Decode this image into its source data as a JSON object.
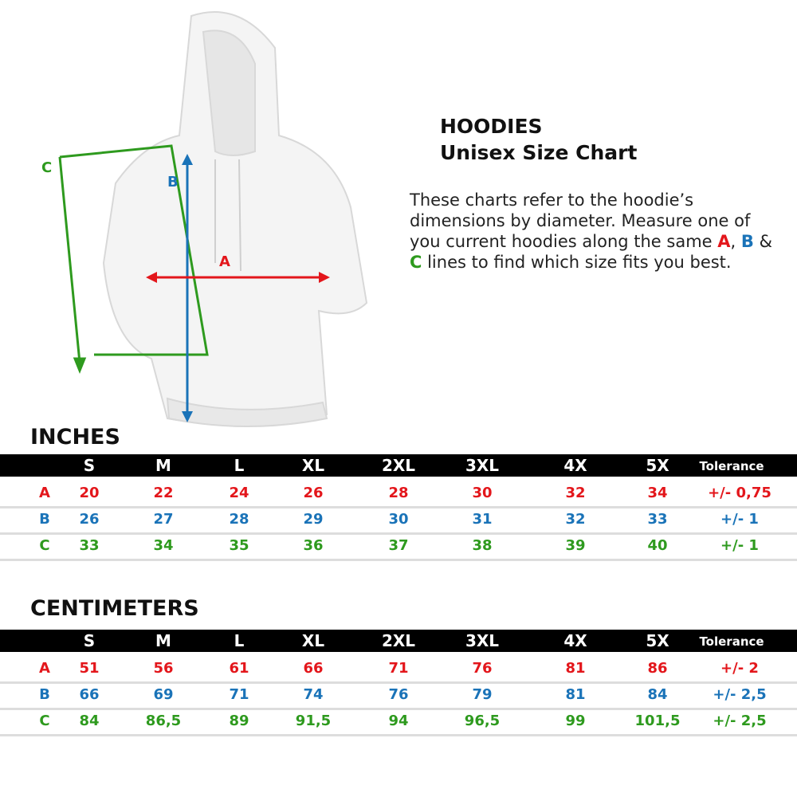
{
  "title": {
    "line1": "HOODIES",
    "line2": "Unisex Size Chart"
  },
  "description": {
    "pre": "These charts refer to the hoodie’s dimensions by diameter. Measure one of you current hoodies along the same ",
    "a": "A",
    "sep1": ", ",
    "b": "B",
    "sep2": " & ",
    "c": "C",
    "post": " lines to find which size fits you best."
  },
  "diagram": {
    "labels": {
      "a": "A",
      "b": "B",
      "c": "C"
    }
  },
  "colors": {
    "A": "#e3161b",
    "B": "#1a73b8",
    "C": "#2e9a1e"
  },
  "headers": [
    "S",
    "M",
    "L",
    "XL",
    "2XL",
    "3XL",
    "4X",
    "5X",
    "Tolerance"
  ],
  "inches": {
    "title": "INCHES",
    "rows": [
      {
        "label": "A",
        "values": [
          "20",
          "22",
          "24",
          "26",
          "28",
          "30",
          "32",
          "34",
          "+/- 0,75"
        ]
      },
      {
        "label": "B",
        "values": [
          "26",
          "27",
          "28",
          "29",
          "30",
          "31",
          "32",
          "33",
          "+/- 1"
        ]
      },
      {
        "label": "C",
        "values": [
          "33",
          "34",
          "35",
          "36",
          "37",
          "38",
          "39",
          "40",
          "+/- 1"
        ]
      }
    ]
  },
  "centimeters": {
    "title": "CENTIMETERS",
    "rows": [
      {
        "label": "A",
        "values": [
          "51",
          "56",
          "61",
          "66",
          "71",
          "76",
          "81",
          "86",
          "+/- 2"
        ]
      },
      {
        "label": "B",
        "values": [
          "66",
          "69",
          "71",
          "74",
          "76",
          "79",
          "81",
          "84",
          "+/- 2,5"
        ]
      },
      {
        "label": "C",
        "values": [
          "84",
          "86,5",
          "89",
          "91,5",
          "94",
          "96,5",
          "99",
          "101,5",
          "+/- 2,5"
        ]
      }
    ]
  }
}
